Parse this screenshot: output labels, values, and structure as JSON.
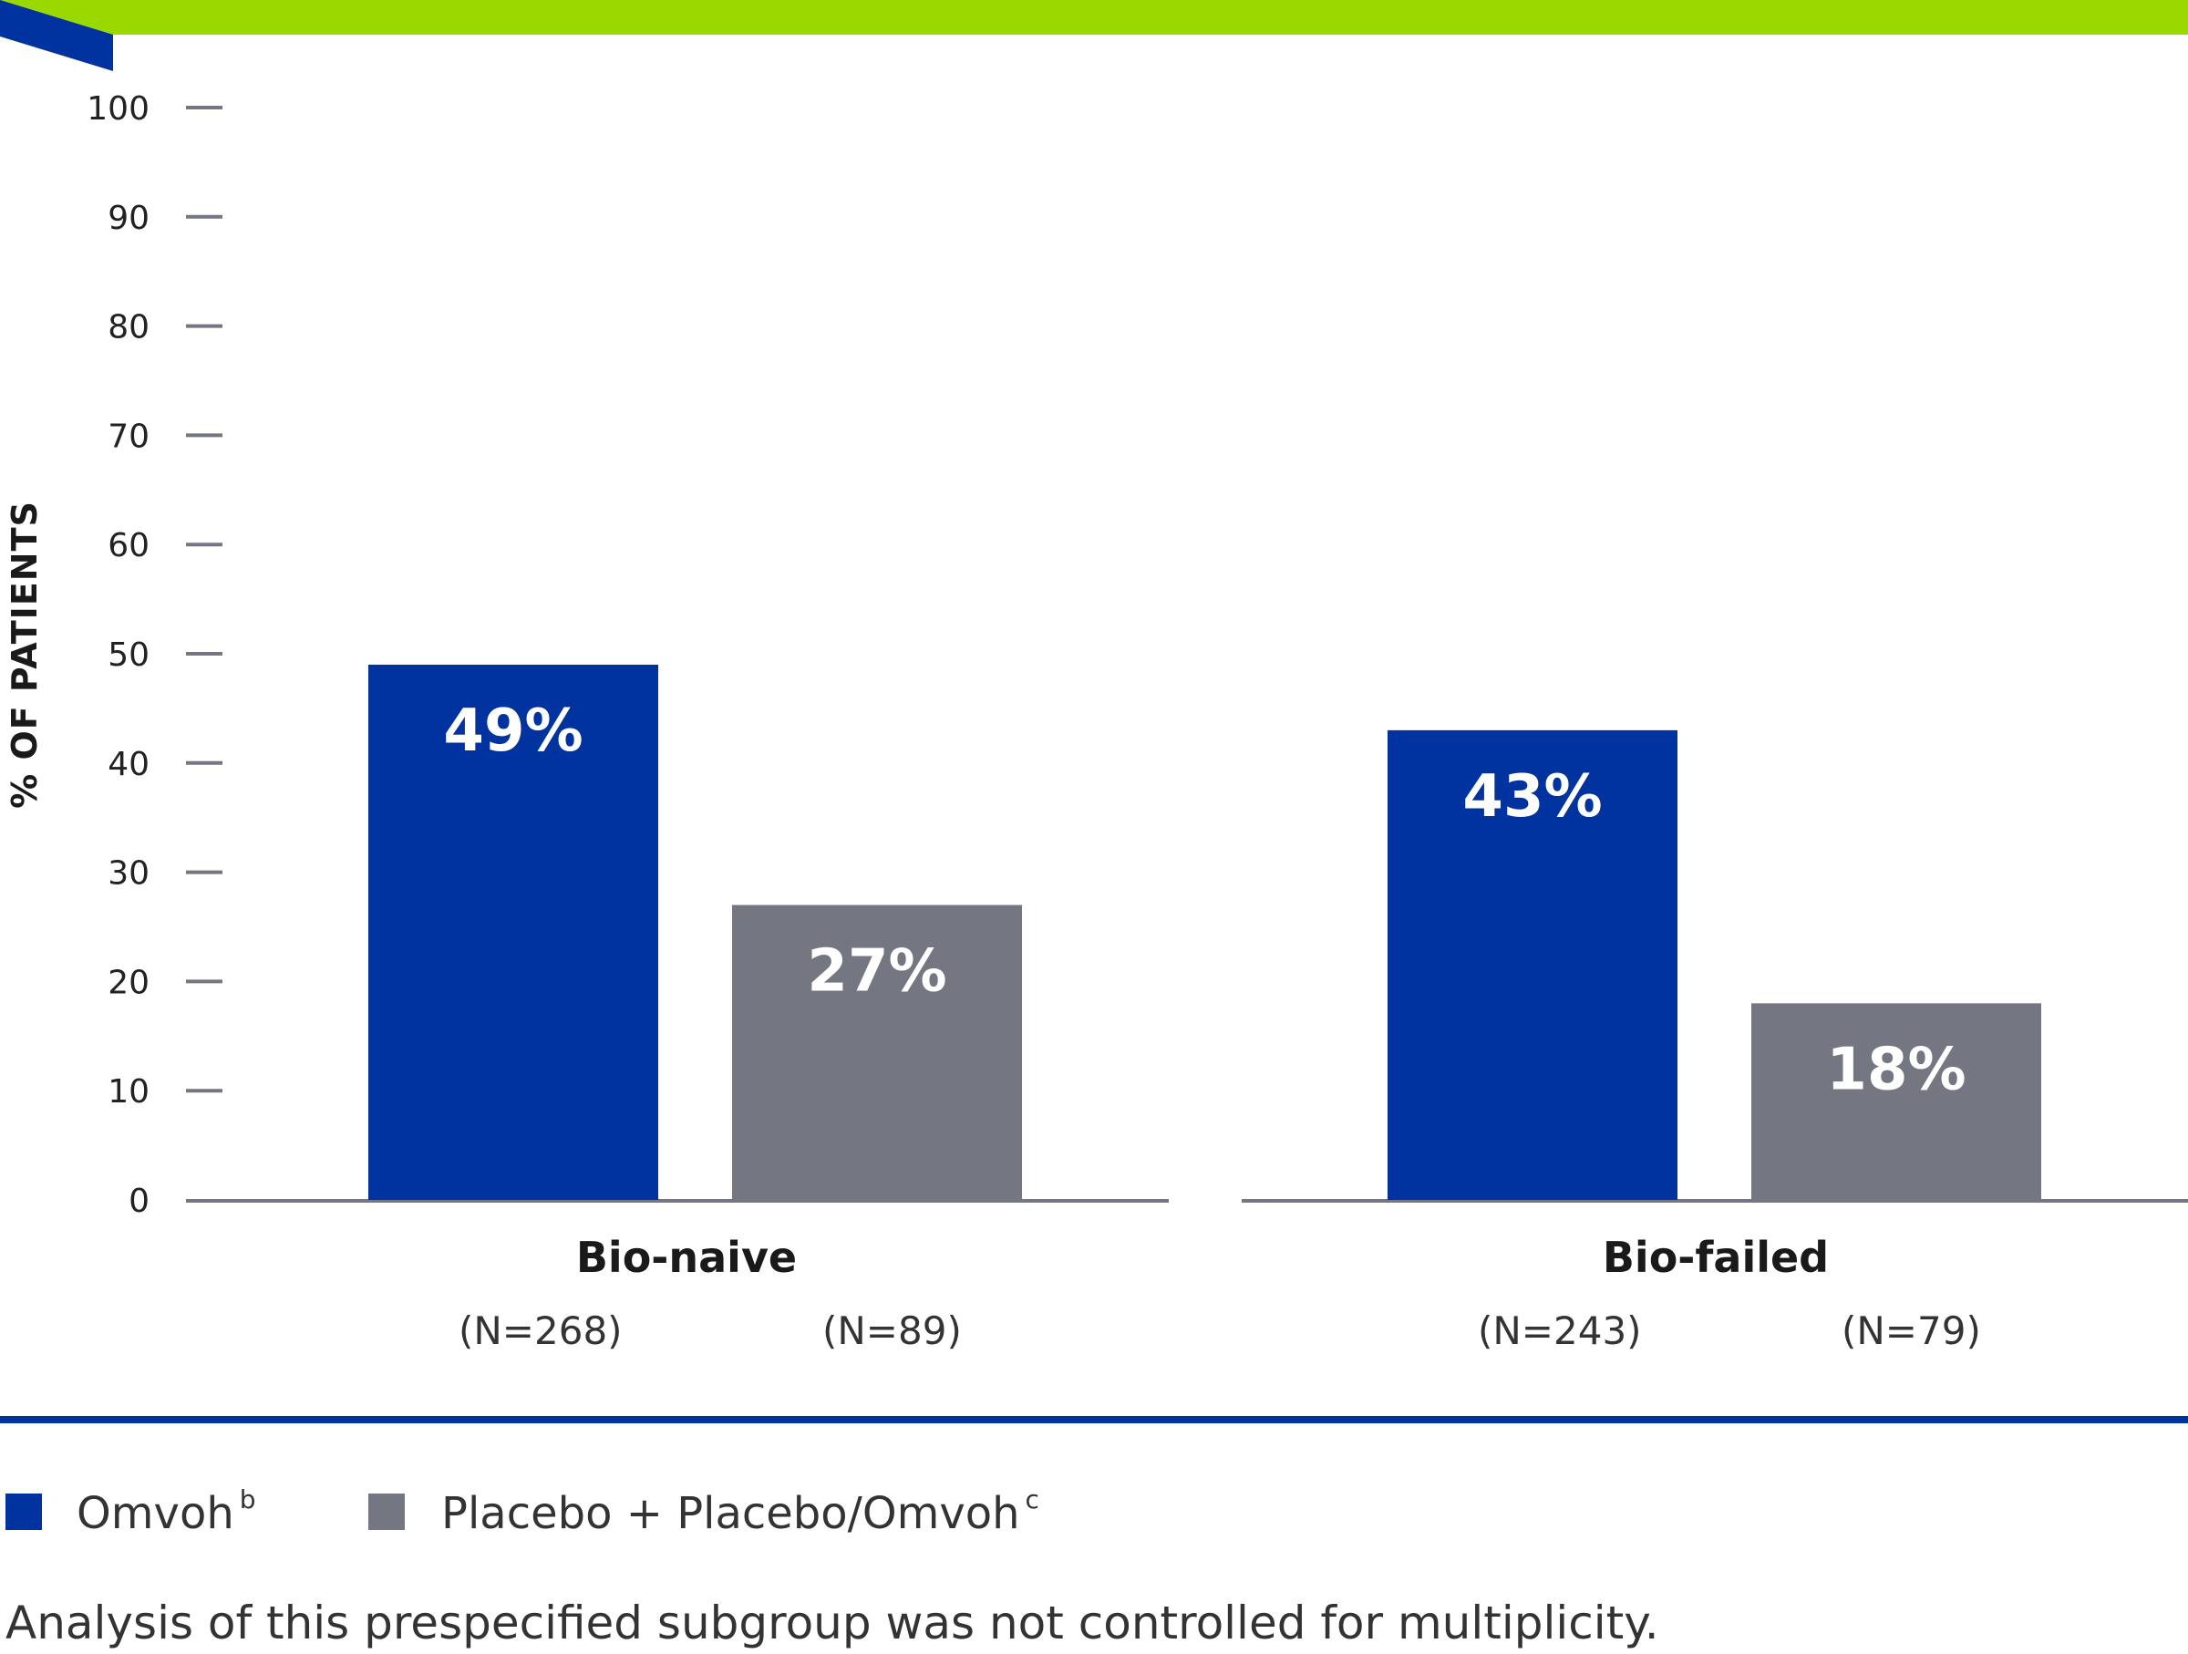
{
  "colors": {
    "top_band": "#99d900",
    "corner_accent": "#0033a0",
    "series_1": "#0033a0",
    "series_2": "#747682",
    "axis": "#747682",
    "divider": "#0033a0"
  },
  "chart_data": {
    "type": "bar",
    "ylabel": "% OF PATIENTS",
    "ylim": [
      0,
      100
    ],
    "yticks": [
      "0",
      "10",
      "20",
      "30",
      "40",
      "50",
      "60",
      "70",
      "80",
      "90",
      "100"
    ],
    "grid": false,
    "categories": [
      "Bio-naive",
      "Bio-failed"
    ],
    "series": [
      {
        "name": "Omvoh",
        "sup": "b",
        "values": [
          49,
          43
        ],
        "labels": [
          "49%",
          "43%"
        ],
        "n": [
          "(N=268)",
          "(N=243)"
        ]
      },
      {
        "name": "Placebo + Placebo/Omvoh",
        "sup": "c",
        "values": [
          27,
          18
        ],
        "labels": [
          "27%",
          "18%"
        ],
        "n": [
          "(N=89)",
          "(N=79)"
        ]
      }
    ],
    "legend": "bottom-left"
  },
  "footnote": "Analysis of this prespecified subgroup was not controlled for multiplicity."
}
